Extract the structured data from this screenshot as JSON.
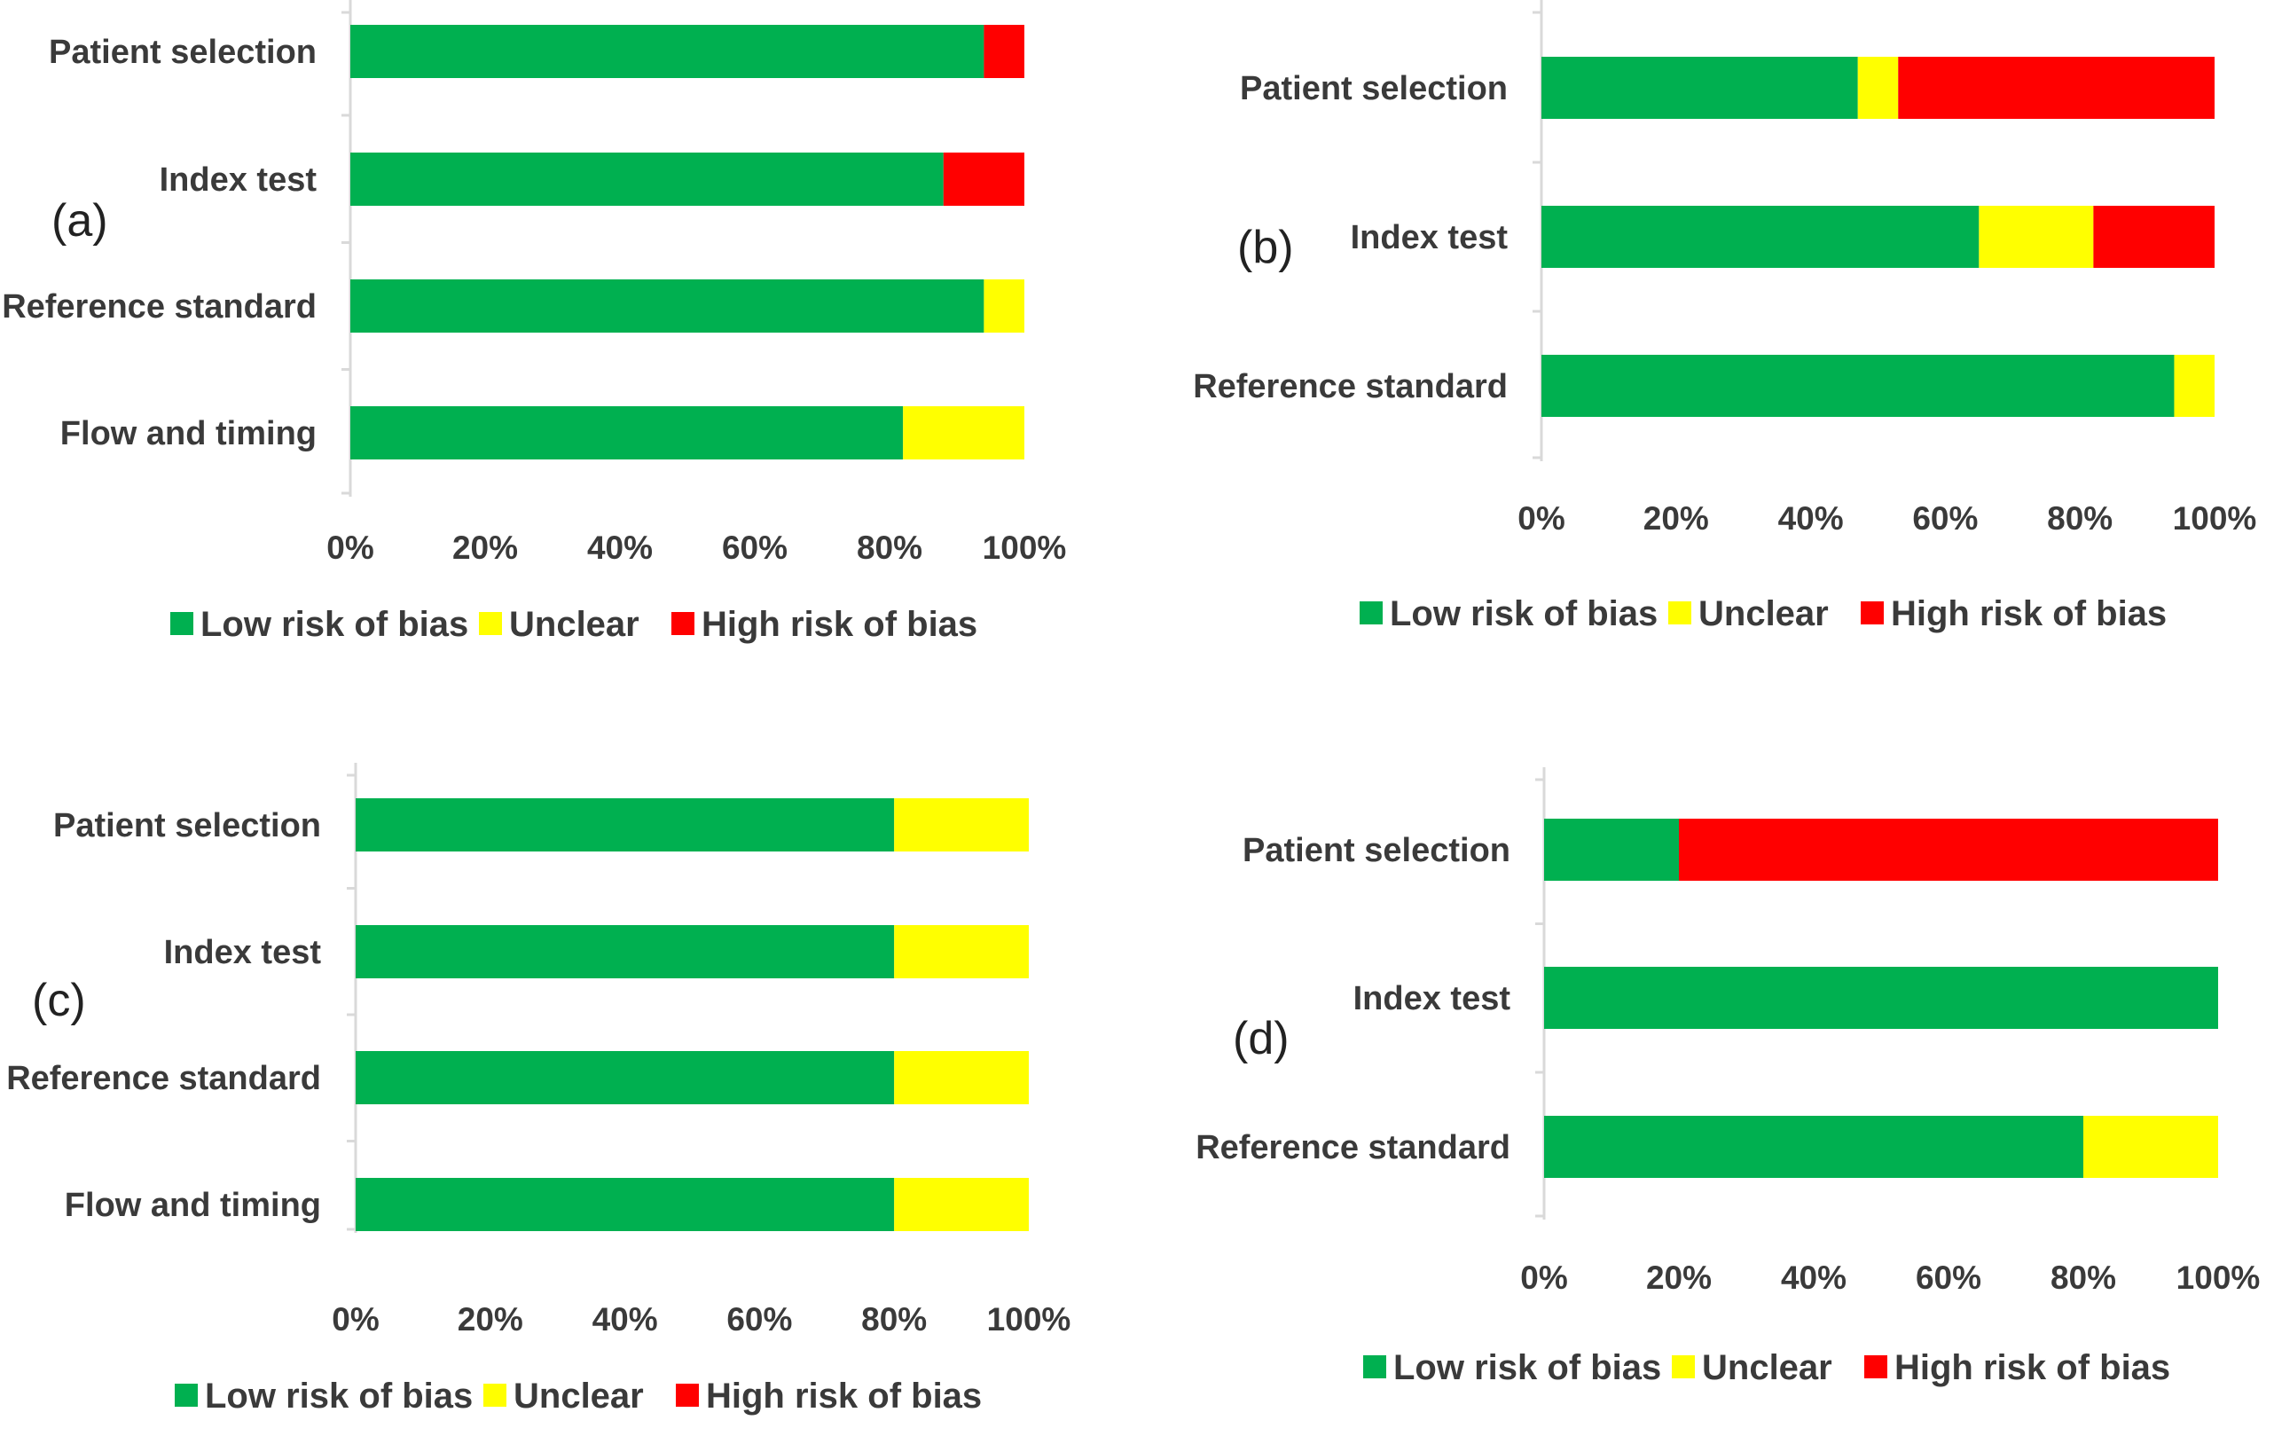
{
  "colors": {
    "low": "#00b050",
    "unclear": "#ffff00",
    "high": "#ff0000",
    "axis": "#d9d9d9",
    "text": "#3a3a3a"
  },
  "legend": [
    "Low risk of bias",
    "Unclear",
    "High risk of bias"
  ],
  "chart_data": [
    {
      "panel": "(a)",
      "type": "bar",
      "stacked": true,
      "orientation": "horizontal",
      "categories": [
        "Patient selection",
        "Index test",
        "Reference standard",
        "Flow and timing"
      ],
      "series": [
        {
          "name": "Low risk of bias",
          "values": [
            94,
            88,
            94,
            82
          ]
        },
        {
          "name": "Unclear",
          "values": [
            0,
            0,
            6,
            18
          ]
        },
        {
          "name": "High risk of bias",
          "values": [
            6,
            12,
            0,
            0
          ]
        }
      ],
      "xlim": [
        0,
        100
      ],
      "xticks": [
        "0%",
        "20%",
        "40%",
        "60%",
        "80%",
        "100%"
      ],
      "legend_position": "bottom"
    },
    {
      "panel": "(b)",
      "type": "bar",
      "stacked": true,
      "orientation": "horizontal",
      "categories": [
        "Patient selection",
        "Index test",
        "Reference standard"
      ],
      "series": [
        {
          "name": "Low risk of bias",
          "values": [
            47,
            65,
            94
          ]
        },
        {
          "name": "Unclear",
          "values": [
            6,
            17,
            6
          ]
        },
        {
          "name": "High risk of bias",
          "values": [
            47,
            18,
            0
          ]
        }
      ],
      "xlim": [
        0,
        100
      ],
      "xticks": [
        "0%",
        "20%",
        "40%",
        "60%",
        "80%",
        "100%"
      ],
      "legend_position": "bottom"
    },
    {
      "panel": "(c)",
      "type": "bar",
      "stacked": true,
      "orientation": "horizontal",
      "categories": [
        "Patient selection",
        "Index test",
        "Reference standard",
        "Flow and timing"
      ],
      "series": [
        {
          "name": "Low risk of bias",
          "values": [
            80,
            80,
            80,
            80
          ]
        },
        {
          "name": "Unclear",
          "values": [
            20,
            20,
            20,
            20
          ]
        },
        {
          "name": "High risk of bias",
          "values": [
            0,
            0,
            0,
            0
          ]
        }
      ],
      "xlim": [
        0,
        100
      ],
      "xticks": [
        "0%",
        "20%",
        "40%",
        "60%",
        "80%",
        "100%"
      ],
      "legend_position": "bottom"
    },
    {
      "panel": "(d)",
      "type": "bar",
      "stacked": true,
      "orientation": "horizontal",
      "categories": [
        "Patient selection",
        "Index test",
        "Reference standard"
      ],
      "series": [
        {
          "name": "Low risk of bias",
          "values": [
            20,
            100,
            80
          ]
        },
        {
          "name": "Unclear",
          "values": [
            0,
            0,
            20
          ]
        },
        {
          "name": "High risk of bias",
          "values": [
            80,
            0,
            0
          ]
        }
      ],
      "xlim": [
        0,
        100
      ],
      "xticks": [
        "0%",
        "20%",
        "40%",
        "60%",
        "80%",
        "100%"
      ],
      "legend_position": "bottom"
    }
  ]
}
